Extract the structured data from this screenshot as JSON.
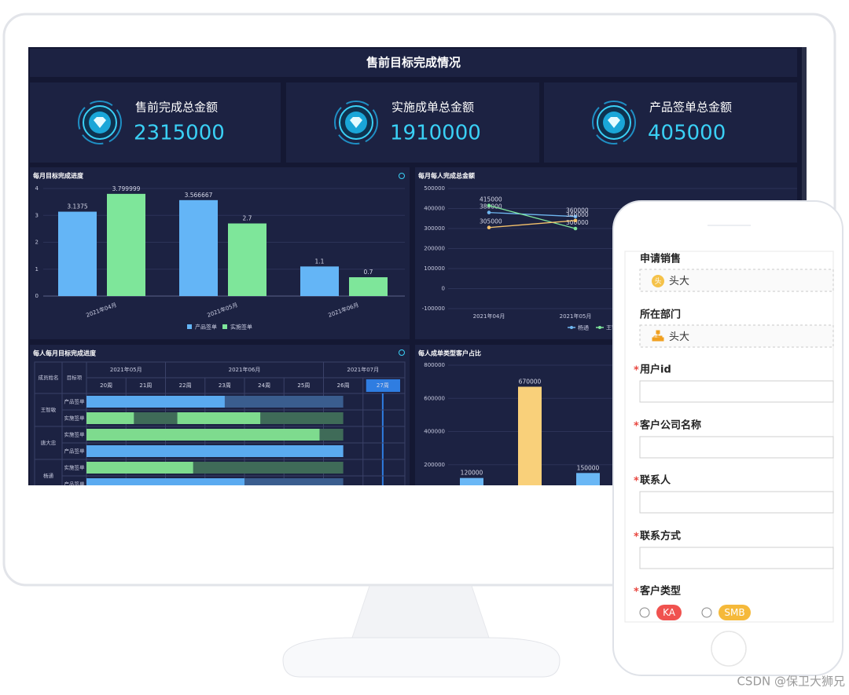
{
  "dashboard": {
    "title": "售前目标完成情况",
    "kpis": [
      {
        "label": "售前完成总金额",
        "value": 2315000
      },
      {
        "label": "实施成单总金额",
        "value": 1910000
      },
      {
        "label": "产品签单总金额",
        "value": 405000
      }
    ],
    "charts": [
      {
        "type": "bar",
        "title": "每月目标完成进度",
        "categories": [
          "2021年04月",
          "2021年05月",
          "2021年06月"
        ],
        "series": [
          {
            "name": "产品签单",
            "color": "#64b5f6",
            "values": [
              3.1375,
              3.566667,
              1.1
            ]
          },
          {
            "name": "实施签单",
            "color": "#7ee69a",
            "values": [
              3.799999,
              2.7,
              0.7
            ]
          }
        ],
        "ylim": [
          0,
          4
        ],
        "yticks": [
          0,
          1,
          2,
          3,
          4
        ],
        "grid": true
      },
      {
        "type": "line",
        "title": "每月每人完成总金额",
        "categories": [
          "2021年04月",
          "2021年05月"
        ],
        "series": [
          {
            "name": "杨通",
            "color": "#6fb6f0",
            "values": [
              380000,
              360000
            ]
          },
          {
            "name": "王智敏",
            "color": "#7ee59b",
            "values": [
              415000,
              300000
            ]
          },
          {
            "color": "#f5c26b",
            "values": [
              305000,
              340000
            ]
          }
        ],
        "ylim": [
          -100000,
          500000
        ],
        "yticks": [
          -100000,
          0,
          100000,
          200000,
          300000,
          400000,
          500000
        ],
        "grid": true
      },
      {
        "type": "gantt",
        "title": "每人每月目标完成进度",
        "headers": [
          "成员姓名",
          "目标项"
        ],
        "months": [
          "2021年05月",
          "2021年06月",
          "2021年07月"
        ],
        "weeks": [
          "20周",
          "21周",
          "22周",
          "23周",
          "24周",
          "25周",
          "26周",
          "27周"
        ],
        "xlim": [
          20,
          28
        ],
        "rows": [
          {
            "name": "王智敏",
            "items": [
              {
                "label": "产品签单",
                "color": "#5aaaf0",
                "track": "#3a5d8e",
                "bars": [
                  {
                    "start": 20,
                    "end": 26.5,
                    "done": 23.5
                  }
                ]
              },
              {
                "label": "实施签单",
                "color": "#7edb8e",
                "track": "#3f6b58",
                "bars": [
                  {
                    "start": 20,
                    "end": 22.3,
                    "done": 21.2
                  },
                  {
                    "start": 22.3,
                    "end": 26.5,
                    "done": 24.4
                  }
                ]
              }
            ]
          },
          {
            "name": "唐大忠",
            "items": [
              {
                "label": "实施签单",
                "color": "#7edb8e",
                "track": "#3f6b58",
                "bars": [
                  {
                    "start": 20,
                    "end": 26.5,
                    "done": 25.9
                  }
                ]
              },
              {
                "label": "产品签单",
                "color": "#5aaaf0",
                "track": "#3a5d8e",
                "bars": [
                  {
                    "start": 20,
                    "end": 26.5,
                    "done": 26.5
                  }
                ]
              }
            ]
          },
          {
            "name": "杨通",
            "items": [
              {
                "label": "实施签单",
                "color": "#7edb8e",
                "track": "#3f6b58",
                "bars": [
                  {
                    "start": 20,
                    "end": 26.5,
                    "done": 22.7
                  }
                ]
              },
              {
                "label": "产品签单",
                "color": "#5aaaf0",
                "track": "#3a5d8e",
                "bars": [
                  {
                    "start": 20,
                    "end": 26.5,
                    "done": 24.0
                  }
                ]
              }
            ]
          }
        ]
      },
      {
        "type": "bar",
        "title": "每人成单类型客户占比",
        "values": [
          120000,
          670000,
          150000
        ],
        "colors": [
          "#6ab7f5",
          "#f9d07a",
          "#6ab7f5"
        ],
        "ylim": [
          0,
          800000
        ],
        "yticks": [
          200000,
          400000,
          600000,
          800000
        ],
        "grid": true
      }
    ]
  },
  "form": {
    "required_mark": "*",
    "fields": [
      {
        "label": "申请销售",
        "tag": {
          "avatar": "头",
          "text": "头大"
        }
      },
      {
        "label": "所在部门",
        "tag": {
          "text": "头大"
        }
      },
      {
        "label": "用户id",
        "required": true
      },
      {
        "label": "客户公司名称",
        "required": true
      },
      {
        "label": "联系人",
        "required": true
      },
      {
        "label": "联系方式",
        "required": true
      },
      {
        "label": "客户类型",
        "required": true,
        "options": [
          {
            "label": "KA",
            "color": "#f0524f"
          },
          {
            "label": "SMB",
            "color": "#f5b93a"
          }
        ]
      }
    ]
  },
  "watermark": "CSDN @保卫大狮兄"
}
